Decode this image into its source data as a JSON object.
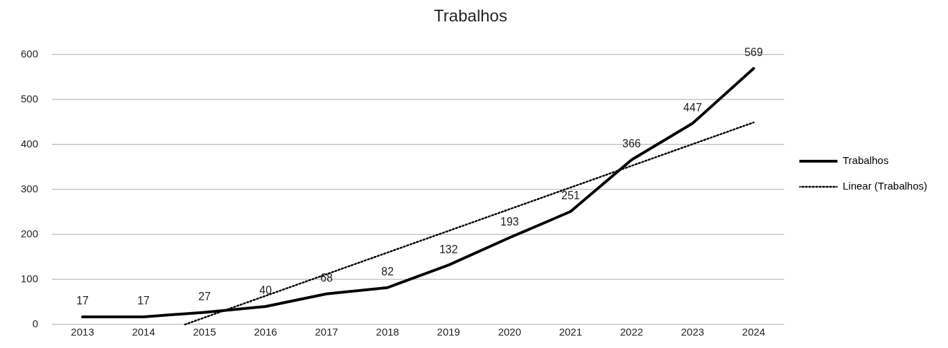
{
  "chart_data": {
    "type": "line",
    "title": "Trabalhos",
    "x": [
      2013,
      2014,
      2015,
      2016,
      2017,
      2018,
      2019,
      2020,
      2021,
      2022,
      2023,
      2024
    ],
    "xlim": [
      2012.5,
      2024.5
    ],
    "xticks": [
      2013,
      2014,
      2015,
      2016,
      2017,
      2018,
      2019,
      2020,
      2021,
      2022,
      2023,
      2024
    ],
    "ylim": [
      0,
      600
    ],
    "yticks": [
      0,
      100,
      200,
      300,
      400,
      500,
      600
    ],
    "series": [
      {
        "name": "Trabalhos",
        "color": "#000000",
        "line_style": "solid",
        "values": [
          17,
          17,
          27,
          40,
          68,
          82,
          132,
          193,
          251,
          366,
          447,
          569
        ],
        "value_labels": [
          "17",
          "17",
          "27",
          "40",
          "68",
          "82",
          "132",
          "193",
          "251",
          "366",
          "447",
          "569"
        ]
      },
      {
        "name": "Linear (Trabalhos)",
        "type": "line",
        "color": "#000000",
        "line_style": "dotted",
        "x": [
          2014.68,
          2024
        ],
        "values": [
          0,
          449
        ]
      }
    ],
    "grid": "y",
    "legend": "right",
    "marker": "none"
  }
}
